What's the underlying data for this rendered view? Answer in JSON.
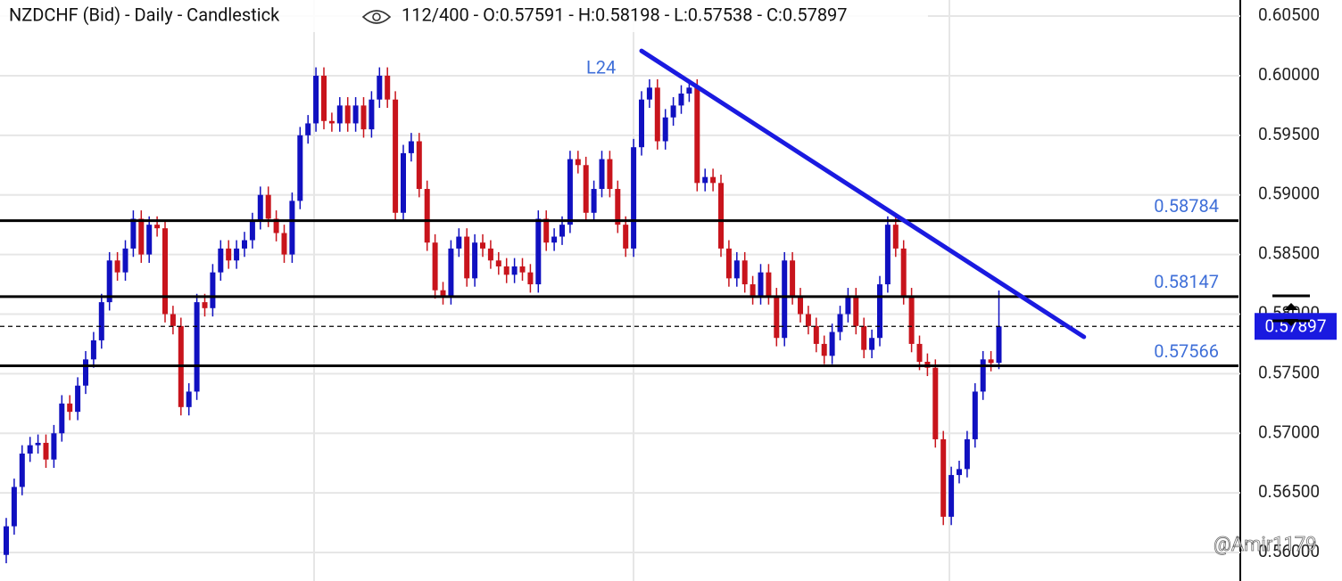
{
  "chart_data": {
    "type": "candlestick",
    "title": "NZDCHF (Bid) - Daily - Candlestick",
    "info": "112/400 - O:0.57591 - H:0.58198 - L:0.57538 - C:0.57897",
    "up_color": "#1010c0",
    "down_color": "#c8141c",
    "ylim": [
      0.55761,
      0.60635
    ],
    "yticks": [
      {
        "value": 0.56,
        "label": "0.56000"
      },
      {
        "value": 0.565,
        "label": "0.56500"
      },
      {
        "value": 0.57,
        "label": "0.57000"
      },
      {
        "value": 0.575,
        "label": "0.57500"
      },
      {
        "value": 0.58,
        "label": "0.58000"
      },
      {
        "value": 0.585,
        "label": "0.58500"
      },
      {
        "value": 0.59,
        "label": "0.59000"
      },
      {
        "value": 0.595,
        "label": "0.59500"
      },
      {
        "value": 0.6,
        "label": "0.60000"
      },
      {
        "value": 0.605,
        "label": "0.60500"
      }
    ],
    "grid": true,
    "open": [
      0.5598,
      0.5622,
      0.5655,
      0.5683,
      0.569,
      0.5692,
      0.5678,
      0.57,
      0.5725,
      0.5718,
      0.574,
      0.5762,
      0.5778,
      0.581,
      0.5845,
      0.5835,
      0.5855,
      0.588,
      0.585,
      0.5875,
      0.5872,
      0.58,
      0.579,
      0.5722,
      0.5735,
      0.581,
      0.5805,
      0.5835,
      0.5855,
      0.5845,
      0.5855,
      0.5862,
      0.5878,
      0.59,
      0.588,
      0.5868,
      0.585,
      0.5895,
      0.595,
      0.596,
      0.6,
      0.5962,
      0.596,
      0.5975,
      0.596,
      0.5975,
      0.5955,
      0.598,
      0.6,
      0.598,
      0.5885,
      0.5935,
      0.5945,
      0.5905,
      0.586,
      0.582,
      0.5815,
      0.5855,
      0.5865,
      0.583,
      0.586,
      0.5855,
      0.5845,
      0.584,
      0.5833,
      0.584,
      0.5835,
      0.5825,
      0.588,
      0.586,
      0.5865,
      0.5875,
      0.593,
      0.5925,
      0.5885,
      0.5905,
      0.593,
      0.5905,
      0.5875,
      0.5855,
      0.594,
      0.598,
      0.599,
      0.5945,
      0.5965,
      0.5975,
      0.5985,
      0.599,
      0.591,
      0.5915,
      0.591,
      0.5855,
      0.583,
      0.5845,
      0.5825,
      0.5815,
      0.5835,
      0.5815,
      0.578,
      0.5845,
      0.5815,
      0.58,
      0.579,
      0.5775,
      0.5765,
      0.5785,
      0.58,
      0.5815,
      0.579,
      0.577,
      0.578,
      0.5825,
      0.5875,
      0.5855,
      0.5815,
      0.5775,
      0.576,
      0.5755,
      0.5695,
      0.563,
      0.5665,
      0.567,
      0.5695,
      0.5735,
      0.5762,
      0.57591
    ],
    "high": [
      0.5629,
      0.5662,
      0.569,
      0.5697,
      0.5699,
      0.5699,
      0.5707,
      0.5732,
      0.5732,
      0.5747,
      0.5769,
      0.5785,
      0.5817,
      0.5852,
      0.5852,
      0.5862,
      0.5887,
      0.5887,
      0.5882,
      0.5882,
      0.5879,
      0.5807,
      0.5797,
      0.5742,
      0.5817,
      0.5817,
      0.5842,
      0.5862,
      0.5862,
      0.5862,
      0.5869,
      0.5885,
      0.5907,
      0.5907,
      0.5887,
      0.5875,
      0.5902,
      0.5957,
      0.5967,
      0.6007,
      0.6007,
      0.5969,
      0.5982,
      0.5982,
      0.5982,
      0.5982,
      0.5987,
      0.6007,
      0.6007,
      0.5987,
      0.5942,
      0.5952,
      0.5952,
      0.5912,
      0.5867,
      0.5827,
      0.5862,
      0.5872,
      0.5872,
      0.5867,
      0.5867,
      0.5862,
      0.5852,
      0.5847,
      0.5847,
      0.5847,
      0.5842,
      0.5887,
      0.5887,
      0.5872,
      0.5882,
      0.5937,
      0.5937,
      0.5932,
      0.5912,
      0.5937,
      0.5937,
      0.5912,
      0.5882,
      0.5947,
      0.5987,
      0.5997,
      0.5997,
      0.5972,
      0.5982,
      0.5992,
      0.5997,
      0.5997,
      0.5922,
      0.5922,
      0.5917,
      0.5862,
      0.5852,
      0.5852,
      0.5832,
      0.5842,
      0.5842,
      0.5822,
      0.5852,
      0.5852,
      0.5822,
      0.5807,
      0.5797,
      0.5782,
      0.5792,
      0.5807,
      0.5822,
      0.5822,
      0.5797,
      0.5787,
      0.5832,
      0.5882,
      0.5882,
      0.5862,
      0.5822,
      0.5782,
      0.5767,
      0.5762,
      0.5702,
      0.5672,
      0.5677,
      0.5702,
      0.5742,
      0.5769,
      0.5769,
      0.58198
    ],
    "low": [
      0.5591,
      0.5615,
      0.5648,
      0.5676,
      0.5683,
      0.5671,
      0.5671,
      0.5693,
      0.5711,
      0.5711,
      0.5733,
      0.5755,
      0.5771,
      0.5803,
      0.5828,
      0.5828,
      0.5848,
      0.5843,
      0.5843,
      0.5865,
      0.5793,
      0.5783,
      0.5715,
      0.5715,
      0.5728,
      0.5798,
      0.5798,
      0.5828,
      0.5838,
      0.5838,
      0.5848,
      0.5855,
      0.5871,
      0.5873,
      0.5861,
      0.5843,
      0.5843,
      0.5888,
      0.5943,
      0.5953,
      0.5955,
      0.5953,
      0.5953,
      0.5953,
      0.5953,
      0.5948,
      0.5948,
      0.5973,
      0.5973,
      0.5878,
      0.5878,
      0.5928,
      0.5898,
      0.5853,
      0.5813,
      0.5808,
      0.5808,
      0.5848,
      0.5823,
      0.5823,
      0.5848,
      0.5838,
      0.5833,
      0.5826,
      0.5826,
      0.5828,
      0.5818,
      0.5818,
      0.5853,
      0.5853,
      0.5858,
      0.5868,
      0.5918,
      0.5878,
      0.5878,
      0.5898,
      0.5898,
      0.5868,
      0.5848,
      0.5848,
      0.5933,
      0.5973,
      0.5938,
      0.5938,
      0.5958,
      0.5968,
      0.5978,
      0.5903,
      0.5903,
      0.5903,
      0.5848,
      0.5823,
      0.5823,
      0.5818,
      0.5808,
      0.5808,
      0.5808,
      0.5773,
      0.5773,
      0.5808,
      0.5793,
      0.5783,
      0.5768,
      0.5758,
      0.5758,
      0.5778,
      0.5793,
      0.5783,
      0.5763,
      0.5763,
      0.5773,
      0.5818,
      0.5848,
      0.5808,
      0.5768,
      0.5753,
      0.5748,
      0.5688,
      0.5623,
      0.5623,
      0.5658,
      0.5663,
      0.5688,
      0.5728,
      0.5752,
      0.57538
    ],
    "close": [
      0.5622,
      0.5655,
      0.5683,
      0.569,
      0.5692,
      0.5678,
      0.57,
      0.5725,
      0.5718,
      0.574,
      0.5762,
      0.5778,
      0.581,
      0.5845,
      0.5835,
      0.5855,
      0.588,
      0.585,
      0.5875,
      0.5872,
      0.58,
      0.579,
      0.5722,
      0.5735,
      0.581,
      0.5805,
      0.5835,
      0.5855,
      0.5845,
      0.5855,
      0.5862,
      0.5878,
      0.59,
      0.588,
      0.5868,
      0.585,
      0.5895,
      0.595,
      0.596,
      0.6,
      0.5962,
      0.596,
      0.5975,
      0.596,
      0.5975,
      0.5955,
      0.598,
      0.6,
      0.598,
      0.5885,
      0.5935,
      0.5945,
      0.5905,
      0.586,
      0.582,
      0.5815,
      0.5855,
      0.5865,
      0.583,
      0.586,
      0.5855,
      0.5845,
      0.584,
      0.5833,
      0.584,
      0.5835,
      0.5825,
      0.588,
      0.586,
      0.5865,
      0.5875,
      0.593,
      0.5925,
      0.5885,
      0.5905,
      0.593,
      0.5905,
      0.5875,
      0.5855,
      0.594,
      0.598,
      0.599,
      0.5945,
      0.5965,
      0.5975,
      0.5985,
      0.599,
      0.591,
      0.5915,
      0.591,
      0.5855,
      0.583,
      0.5845,
      0.5825,
      0.5815,
      0.5835,
      0.5815,
      0.578,
      0.5845,
      0.5815,
      0.58,
      0.579,
      0.5775,
      0.5765,
      0.5785,
      0.58,
      0.5815,
      0.579,
      0.577,
      0.578,
      0.5825,
      0.5875,
      0.5855,
      0.5815,
      0.5775,
      0.576,
      0.5755,
      0.5695,
      0.563,
      0.5665,
      0.567,
      0.5695,
      0.5735,
      0.5762,
      0.5759,
      0.57897
    ],
    "levels": [
      0.58784,
      0.58147,
      0.57566
    ],
    "level_color": "#000000",
    "level_label_color": "#3f6fd8",
    "current_price": {
      "value": 0.57897,
      "label": "0.57897"
    },
    "trendline": {
      "label": "L24",
      "color": "#1a1ae0",
      "start": [
        80,
        0.60208
      ],
      "end": [
        135.7,
        0.57809
      ]
    },
    "watermark": "@Amir1179"
  }
}
